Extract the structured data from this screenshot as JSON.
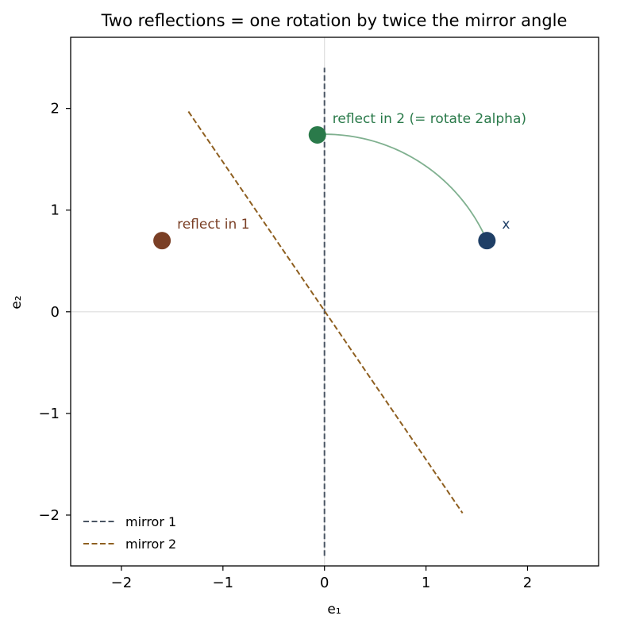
{
  "chart_data": {
    "type": "line",
    "title": "Two reflections = one rotation by twice the mirror angle",
    "xlabel": "e₁",
    "ylabel": "e₂",
    "xlim": [
      -2.5,
      2.7
    ],
    "ylim": [
      -2.5,
      2.7
    ],
    "xticks": [
      -2,
      -1,
      0,
      1,
      2
    ],
    "yticks": [
      -2,
      -1,
      0,
      1,
      2
    ],
    "xtick_labels": [
      "−2",
      "−1",
      "0",
      "1",
      "2"
    ],
    "ytick_labels": [
      "−2",
      "−1",
      "0",
      "1",
      "2"
    ],
    "grid": false,
    "reference_lines": [
      {
        "orientation": "vertical",
        "value": 0,
        "color": "#dddddd"
      },
      {
        "orientation": "horizontal",
        "value": 0,
        "color": "#dddddd"
      }
    ],
    "series": [
      {
        "name": "mirror 1",
        "style": "dashed",
        "color": "#4a5563",
        "x": [
          0.0,
          0.0
        ],
        "y": [
          -2.4,
          2.4
        ]
      },
      {
        "name": "mirror 2",
        "style": "dashed",
        "color": "#8e5f20",
        "x": [
          -1.34,
          1.36
        ],
        "y": [
          1.97,
          -1.98
        ]
      }
    ],
    "arc": {
      "color": "#7fb08f",
      "from": [
        1.6,
        0.7
      ],
      "to": [
        -0.07,
        1.74
      ],
      "center": [
        0,
        0
      ]
    },
    "points": [
      {
        "label": "x",
        "x": 1.6,
        "y": 0.7,
        "color": "#1f3f66"
      },
      {
        "label": "reflect in 1",
        "x": -1.6,
        "y": 0.7,
        "color": "#7a3f25"
      },
      {
        "label": "reflect in 2  (= rotate 2alpha)",
        "x": -0.07,
        "y": 1.74,
        "color": "#2a7a4a"
      }
    ],
    "legend": {
      "placement": "lower-left",
      "entries": [
        "mirror 1",
        "mirror 2"
      ]
    }
  }
}
